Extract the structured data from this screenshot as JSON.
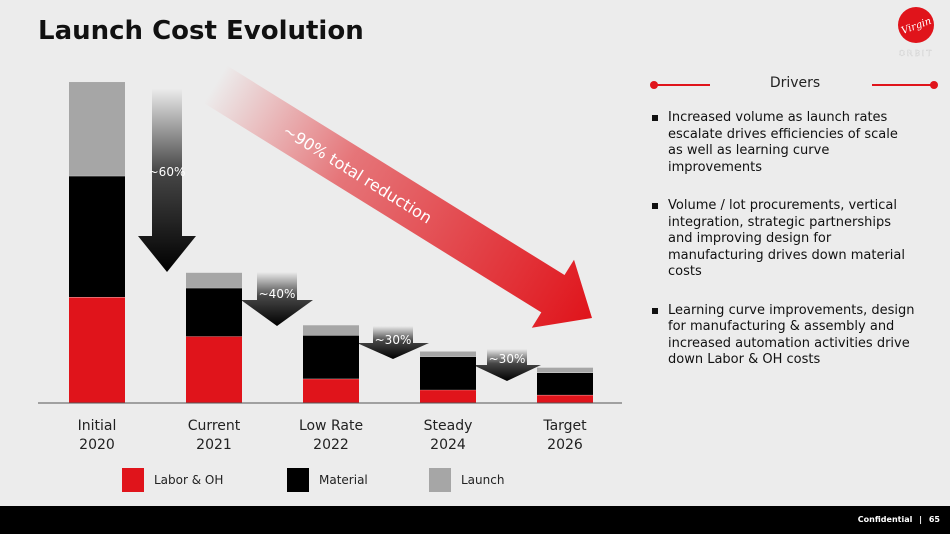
{
  "page": {
    "title": "Launch Cost Evolution",
    "logo_text": "Virgin",
    "logo_sub": "ORBIT",
    "footer": {
      "label": "Confidential",
      "separator": "|",
      "page_number": "65"
    }
  },
  "colors": {
    "labor": "#e0141b",
    "material": "#000000",
    "launch": "#a6a6a6",
    "accent": "#e0141b",
    "background": "#ececec"
  },
  "chart_data": {
    "type": "bar",
    "stacked": true,
    "categories": [
      "Initial\n2020",
      "Current\n2021",
      "Low Rate\n2022",
      "Steady\n2024",
      "Target\n2026"
    ],
    "category_lines": [
      [
        "Initial",
        "2020"
      ],
      [
        "Current",
        "2021"
      ],
      [
        "Low Rate",
        "2022"
      ],
      [
        "Steady",
        "2024"
      ],
      [
        "Target",
        "2026"
      ]
    ],
    "series": [
      {
        "name": "Labor & OH",
        "color": "#e0141b",
        "values": [
          105,
          66,
          24,
          13,
          8
        ]
      },
      {
        "name": "Material",
        "color": "#000000",
        "values": [
          120,
          48,
          43,
          33,
          22
        ]
      },
      {
        "name": "Launch",
        "color": "#a6a6a6",
        "values": [
          93,
          15,
          10,
          5,
          5
        ]
      }
    ],
    "ylim": [
      0,
      320
    ],
    "step_reductions": [
      "~60%",
      "~40%",
      "~30%",
      "~30%"
    ],
    "total_reduction_label": "~90% total reduction",
    "grid": false,
    "legend_position": "bottom"
  },
  "drivers": {
    "title": "Drivers",
    "items": [
      "Increased volume as launch rates escalate drives efficiencies of scale as well as learning curve improvements",
      "Volume / lot procurements, vertical integration, strategic partnerships and improving design for manufacturing drives down material costs",
      "Learning curve improvements, design for manufacturing & assembly and increased automation activities drive down Labor & OH costs"
    ]
  }
}
